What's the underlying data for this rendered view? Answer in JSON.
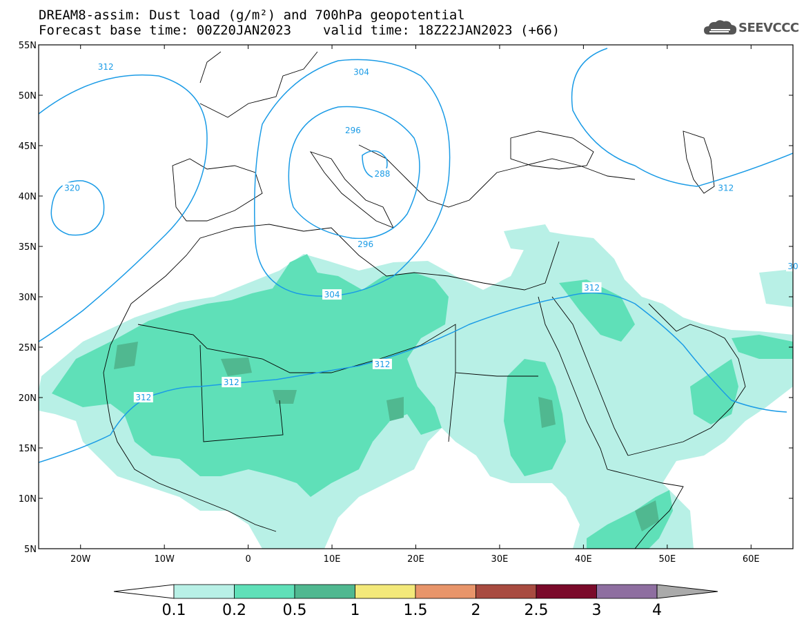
{
  "title": {
    "line1": "DREAM8-assim: Dust load (g/m²) and 700hPa geopotential",
    "line2_base": "Forecast base time: 00Z20JAN2023",
    "line2_valid": "valid time: 18Z22JAN2023 (+66)"
  },
  "logo": {
    "text": "SEEVCCC",
    "icon": "cloud-icon"
  },
  "map": {
    "lat_labels": [
      "55N",
      "50N",
      "45N",
      "40N",
      "35N",
      "30N",
      "25N",
      "20N",
      "15N",
      "10N",
      "5N"
    ],
    "lon_labels": [
      "20W",
      "10W",
      "0",
      "10E",
      "20E",
      "30E",
      "40E",
      "50E",
      "60E"
    ],
    "lat_range": [
      5,
      55
    ],
    "lon_range": [
      -25,
      65
    ],
    "contour_labels": [
      {
        "text": "312",
        "lon": -17,
        "lat": 52.8
      },
      {
        "text": "304",
        "lon": 13.5,
        "lat": 52.3
      },
      {
        "text": "296",
        "lon": 12.5,
        "lat": 46.5
      },
      {
        "text": "288",
        "lon": 16.0,
        "lat": 42.2
      },
      {
        "text": "320",
        "lon": -21,
        "lat": 40.8
      },
      {
        "text": "296",
        "lon": 14.0,
        "lat": 35.2
      },
      {
        "text": "304",
        "lon": 10.0,
        "lat": 30.2
      },
      {
        "text": "312",
        "lon": 41.0,
        "lat": 30.9
      },
      {
        "text": "312",
        "lon": 57.0,
        "lat": 40.8
      },
      {
        "text": "312",
        "lon": 16.0,
        "lat": 23.3
      },
      {
        "text": "312",
        "lon": -2.0,
        "lat": 21.5
      },
      {
        "text": "312",
        "lon": -12.5,
        "lat": 20.0
      },
      {
        "text": "30",
        "lon": 65.0,
        "lat": 33.0
      }
    ],
    "colors": {
      "contour": "#1a9be6",
      "coast": "#000000"
    }
  },
  "colorbar": {
    "labels": [
      "0.1",
      "0.2",
      "0.5",
      "1",
      "1.5",
      "2",
      "2.5",
      "3",
      "4"
    ],
    "colors": [
      "#b8f0e6",
      "#5fe0b8",
      "#50b890",
      "#f3e97a",
      "#e8956a",
      "#a84b40",
      "#7a0a2a",
      "#8e6ea0",
      "#aaaaaa"
    ]
  }
}
